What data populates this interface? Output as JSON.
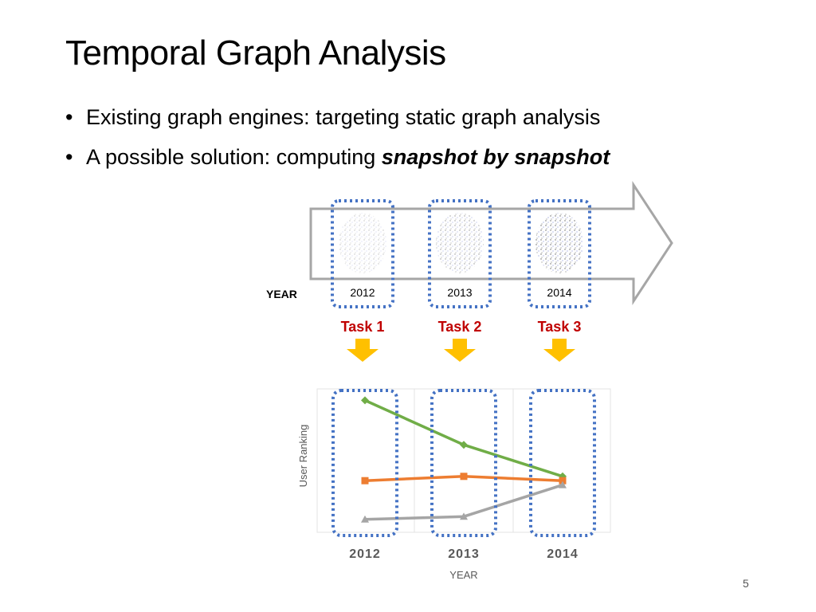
{
  "slide": {
    "title": "Temporal Graph Analysis",
    "bullets": [
      {
        "text": "Existing graph engines: targeting static graph analysis",
        "emphasis": ""
      },
      {
        "text": "A possible solution: computing ",
        "emphasis": "snapshot by snapshot"
      }
    ],
    "page_number": "5"
  },
  "pipeline": {
    "year_label": "YEAR",
    "snapshots": [
      {
        "year": "2012",
        "task": "Task 1"
      },
      {
        "year": "2013",
        "task": "Task 2"
      },
      {
        "year": "2014",
        "task": "Task 3"
      }
    ],
    "colors": {
      "dotted_box": "#4472c4",
      "task_text": "#c00000",
      "arrow": "#ffc000",
      "flow_arrow": "#a6a6a6"
    }
  },
  "chart_data": {
    "type": "line",
    "categories": [
      "2012",
      "2013",
      "2014"
    ],
    "xlabel": "YEAR",
    "ylabel": "User Ranking",
    "ylim": [
      0,
      10
    ],
    "grid": true,
    "series": [
      {
        "values": [
          9.2,
          6.1,
          3.9
        ],
        "color": "#70ad47",
        "marker": "diamond"
      },
      {
        "values": [
          3.6,
          3.9,
          3.6
        ],
        "color": "#ed7d31",
        "marker": "square"
      },
      {
        "values": [
          0.9,
          1.1,
          3.3
        ],
        "color": "#a5a5a5",
        "marker": "triangle"
      }
    ]
  }
}
